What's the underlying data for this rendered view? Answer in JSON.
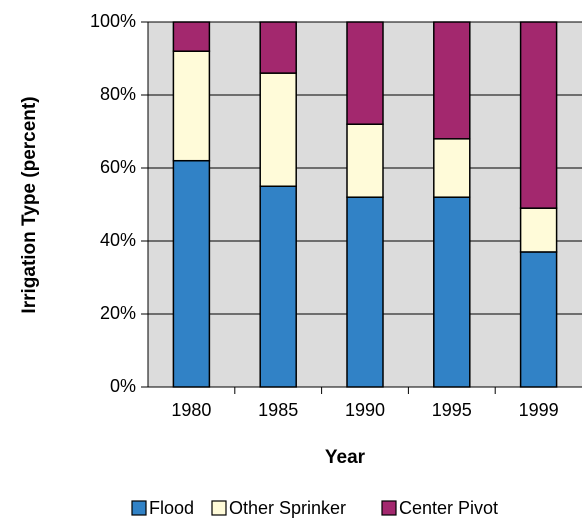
{
  "chart_data": {
    "type": "stacked_bar",
    "x_label": "Year",
    "y_label": "Irrigation Type (percent)",
    "categories": [
      "1980",
      "1985",
      "1990",
      "1995",
      "1999"
    ],
    "series": [
      {
        "name": "Flood",
        "color": "#3182c6",
        "values": [
          62,
          55,
          52,
          52,
          37
        ]
      },
      {
        "name": "Other Sprinker",
        "color": "#fffbd9",
        "values": [
          30,
          31,
          20,
          16,
          12
        ]
      },
      {
        "name": "Center Pivot",
        "color": "#a3286e",
        "values": [
          8,
          14,
          28,
          32,
          51
        ]
      }
    ],
    "ylim": [
      0,
      100
    ],
    "yticks": [
      {
        "value": 0,
        "label": "0%"
      },
      {
        "value": 20,
        "label": "20%"
      },
      {
        "value": 40,
        "label": "40%"
      },
      {
        "value": 60,
        "label": "60%"
      },
      {
        "value": 80,
        "label": "80%"
      },
      {
        "value": 100,
        "label": "100%"
      }
    ],
    "grid": true,
    "legend": "bottom"
  }
}
